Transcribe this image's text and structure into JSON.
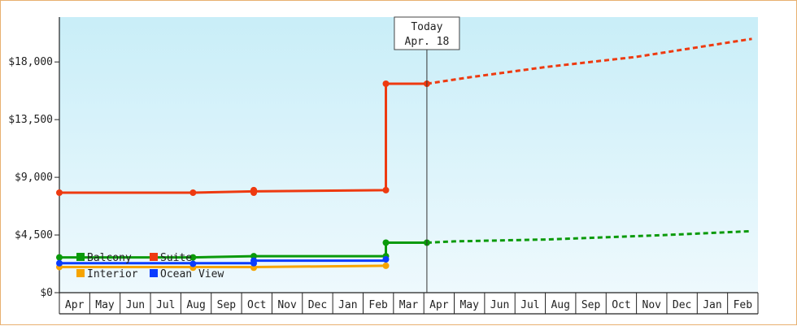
{
  "chart_data": {
    "type": "line",
    "step": true,
    "ylim": [
      0,
      21500
    ],
    "y_ticks": [
      {
        "value": 0,
        "label": "$0"
      },
      {
        "value": 4500,
        "label": "$4,500"
      },
      {
        "value": 9000,
        "label": "$9,000"
      },
      {
        "value": 13500,
        "label": "$13,500"
      },
      {
        "value": 18000,
        "label": "$18,000"
      }
    ],
    "x_months": [
      "Apr",
      "May",
      "Jun",
      "Jul",
      "Aug",
      "Sep",
      "Oct",
      "Nov",
      "Dec",
      "Jan",
      "Feb",
      "Mar",
      "Apr",
      "May",
      "Jun",
      "Jul",
      "Aug",
      "Sep",
      "Oct",
      "Nov",
      "Dec",
      "Jan",
      "Feb"
    ],
    "today": {
      "label_line1": "Today",
      "label_line2": "Apr. 18",
      "x": 12.1
    },
    "grid": false,
    "background": [
      "#c9eef8",
      "#eef9fd"
    ],
    "legend_position": "bottom-left",
    "series": [
      {
        "name": "Balcony",
        "color": "#0a9a0a",
        "points": [
          [
            0,
            2750
          ],
          [
            4.4,
            2750
          ],
          [
            6.4,
            2850
          ],
          [
            10.75,
            2850
          ],
          [
            10.75,
            3900
          ],
          [
            12.1,
            3900
          ]
        ],
        "markers": [
          [
            0,
            2750
          ],
          [
            4.4,
            2750
          ],
          [
            6.4,
            2850
          ],
          [
            10.75,
            2850
          ],
          [
            10.75,
            3900
          ],
          [
            12.1,
            3900
          ]
        ],
        "forecast": [
          [
            12.1,
            3900
          ],
          [
            13,
            4000
          ],
          [
            16,
            4150
          ],
          [
            20,
            4500
          ],
          [
            22.8,
            4800
          ]
        ]
      },
      {
        "name": "Suite",
        "color": "#ee3a10",
        "points": [
          [
            0,
            7800
          ],
          [
            4.4,
            7800
          ],
          [
            6.4,
            7900
          ],
          [
            10.75,
            8000
          ],
          [
            10.75,
            16300
          ],
          [
            12.1,
            16300
          ]
        ],
        "markers": [
          [
            0,
            7800
          ],
          [
            4.4,
            7800
          ],
          [
            6.4,
            7800
          ],
          [
            6.4,
            8000
          ],
          [
            10.75,
            8000
          ],
          [
            10.75,
            16300
          ],
          [
            12.1,
            16300
          ]
        ],
        "forecast": [
          [
            12.1,
            16300
          ],
          [
            13.5,
            16800
          ],
          [
            16,
            17600
          ],
          [
            19,
            18400
          ],
          [
            22.8,
            19800
          ]
        ]
      },
      {
        "name": "Interior",
        "color": "#f6a400",
        "points": [
          [
            0,
            2000
          ],
          [
            4.4,
            2000
          ],
          [
            6.4,
            2000
          ],
          [
            10.75,
            2100
          ]
        ],
        "markers": [
          [
            0,
            2000
          ],
          [
            4.4,
            1950
          ],
          [
            6.4,
            1950
          ],
          [
            10.75,
            2100
          ]
        ]
      },
      {
        "name": "Ocean View",
        "color": "#0a3cff",
        "points": [
          [
            0,
            2300
          ],
          [
            4.4,
            2300
          ],
          [
            6.4,
            2300
          ],
          [
            6.4,
            2500
          ],
          [
            10.75,
            2500
          ]
        ],
        "markers": [
          [
            0,
            2300
          ],
          [
            4.4,
            2250
          ],
          [
            6.4,
            2300
          ],
          [
            6.4,
            2500
          ],
          [
            10.75,
            2600
          ]
        ]
      }
    ]
  }
}
